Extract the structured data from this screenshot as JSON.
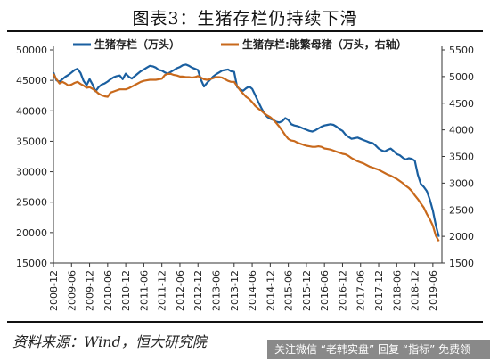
{
  "header": {
    "title": "图表3：生猪存栏仍持续下滑"
  },
  "footer": {
    "source": "资料来源：Wind，恒大研究院",
    "banner": "关注微信 “老韩实盘” 回复 “指标” 免费领"
  },
  "colors": {
    "primary": "#1a5fa0",
    "secondary": "#c8691c",
    "axis": "#333333",
    "text": "#222222"
  },
  "chart_data": {
    "type": "line",
    "title": "图表3：生猪存栏仍持续下滑",
    "xlabel": "",
    "ylabel": "",
    "grid": false,
    "legend_position": "top",
    "x_tick_labels": [
      "2008-12",
      "2009-06",
      "2009-12",
      "2010-06",
      "2010-12",
      "2011-06",
      "2011-12",
      "2012-06",
      "2012-12",
      "2013-06",
      "2013-12",
      "2014-06",
      "2014-12",
      "2015-06",
      "2015-12",
      "2016-06",
      "2016-12",
      "2017-06",
      "2017-12",
      "2018-06",
      "2018-12",
      "2019-06"
    ],
    "ylim_left": [
      15000,
      50000
    ],
    "ylim_right": [
      1500,
      5500
    ],
    "y_ticks_left": [
      15000,
      20000,
      25000,
      30000,
      35000,
      40000,
      45000,
      50000
    ],
    "y_ticks_right": [
      1500,
      2000,
      2500,
      3000,
      3500,
      4000,
      4500,
      5000,
      5500
    ],
    "series": [
      {
        "name": "生猪存栏（万头）",
        "axis": "left",
        "x": [
          "2008-12",
          "2009-01",
          "2009-02",
          "2009-03",
          "2009-04",
          "2009-05",
          "2009-06",
          "2009-07",
          "2009-08",
          "2009-09",
          "2009-10",
          "2009-11",
          "2009-12",
          "2010-01",
          "2010-02",
          "2010-03",
          "2010-04",
          "2010-05",
          "2010-06",
          "2010-07",
          "2010-08",
          "2010-09",
          "2010-10",
          "2010-11",
          "2010-12",
          "2011-01",
          "2011-02",
          "2011-03",
          "2011-04",
          "2011-05",
          "2011-06",
          "2011-07",
          "2011-08",
          "2011-09",
          "2011-10",
          "2011-11",
          "2011-12",
          "2012-01",
          "2012-02",
          "2012-03",
          "2012-04",
          "2012-05",
          "2012-06",
          "2012-07",
          "2012-08",
          "2012-09",
          "2012-10",
          "2012-11",
          "2012-12",
          "2013-01",
          "2013-02",
          "2013-03",
          "2013-04",
          "2013-05",
          "2013-06",
          "2013-07",
          "2013-08",
          "2013-09",
          "2013-10",
          "2013-11",
          "2013-12",
          "2014-01",
          "2014-02",
          "2014-03",
          "2014-04",
          "2014-05",
          "2014-06",
          "2014-07",
          "2014-08",
          "2014-09",
          "2014-10",
          "2014-11",
          "2014-12",
          "2015-01",
          "2015-02",
          "2015-03",
          "2015-04",
          "2015-05",
          "2015-06",
          "2015-07",
          "2015-08",
          "2015-09",
          "2015-10",
          "2015-11",
          "2015-12",
          "2016-01",
          "2016-02",
          "2016-03",
          "2016-04",
          "2016-05",
          "2016-06",
          "2016-07",
          "2016-08",
          "2016-09",
          "2016-10",
          "2016-11",
          "2016-12",
          "2017-01",
          "2017-02",
          "2017-03",
          "2017-04",
          "2017-05",
          "2017-06",
          "2017-07",
          "2017-08",
          "2017-09",
          "2017-10",
          "2017-11",
          "2017-12",
          "2018-01",
          "2018-02",
          "2018-03",
          "2018-04",
          "2018-05",
          "2018-06",
          "2018-07",
          "2018-08",
          "2018-09",
          "2018-10",
          "2018-11",
          "2018-12",
          "2019-01",
          "2019-02",
          "2019-03",
          "2019-04",
          "2019-05",
          "2019-06",
          "2019-07",
          "2019-08"
        ],
        "values": [
          46300,
          45000,
          44800,
          45200,
          45600,
          45900,
          46300,
          46700,
          46900,
          46200,
          44900,
          44200,
          45200,
          44300,
          43200,
          43900,
          44300,
          44500,
          44800,
          45200,
          45500,
          45700,
          45800,
          45200,
          46100,
          45600,
          45300,
          45700,
          46100,
          46500,
          46800,
          47100,
          47400,
          47300,
          47100,
          46700,
          46600,
          46300,
          46100,
          46400,
          46700,
          47000,
          47200,
          47500,
          47600,
          47400,
          47100,
          46900,
          46700,
          45100,
          44000,
          44600,
          45100,
          45600,
          46000,
          46300,
          46600,
          46700,
          46800,
          46500,
          46400,
          43900,
          43500,
          43300,
          43700,
          44000,
          43600,
          42600,
          41500,
          40500,
          39600,
          39000,
          38700,
          38500,
          38200,
          38100,
          38300,
          38800,
          38500,
          37800,
          37600,
          37500,
          37300,
          37100,
          36900,
          36700,
          36600,
          36800,
          37100,
          37400,
          37600,
          37700,
          37800,
          37700,
          37400,
          37000,
          36700,
          36100,
          35700,
          35400,
          35500,
          35600,
          35400,
          35200,
          35000,
          34800,
          34700,
          34300,
          33800,
          33500,
          33300,
          33600,
          33800,
          33400,
          32900,
          32700,
          32300,
          32000,
          32200,
          32100,
          31800,
          29500,
          28000,
          27500,
          26800,
          25400,
          23600,
          21200,
          19300
        ]
      },
      {
        "name": "生猪存栏:能繁母猪（万头，右轴）",
        "axis": "right",
        "x": [
          "2008-12",
          "2009-01",
          "2009-02",
          "2009-03",
          "2009-04",
          "2009-05",
          "2009-06",
          "2009-07",
          "2009-08",
          "2009-09",
          "2009-10",
          "2009-11",
          "2009-12",
          "2010-01",
          "2010-02",
          "2010-03",
          "2010-04",
          "2010-05",
          "2010-06",
          "2010-07",
          "2010-08",
          "2010-09",
          "2010-10",
          "2010-11",
          "2010-12",
          "2011-01",
          "2011-02",
          "2011-03",
          "2011-04",
          "2011-05",
          "2011-06",
          "2011-07",
          "2011-08",
          "2011-09",
          "2011-10",
          "2011-11",
          "2011-12",
          "2012-01",
          "2012-02",
          "2012-03",
          "2012-04",
          "2012-05",
          "2012-06",
          "2012-07",
          "2012-08",
          "2012-09",
          "2012-10",
          "2012-11",
          "2012-12",
          "2013-01",
          "2013-02",
          "2013-03",
          "2013-04",
          "2013-05",
          "2013-06",
          "2013-07",
          "2013-08",
          "2013-09",
          "2013-10",
          "2013-11",
          "2013-12",
          "2014-01",
          "2014-02",
          "2014-03",
          "2014-04",
          "2014-05",
          "2014-06",
          "2014-07",
          "2014-08",
          "2014-09",
          "2014-10",
          "2014-11",
          "2014-12",
          "2015-01",
          "2015-02",
          "2015-03",
          "2015-04",
          "2015-05",
          "2015-06",
          "2015-07",
          "2015-08",
          "2015-09",
          "2015-10",
          "2015-11",
          "2015-12",
          "2016-01",
          "2016-02",
          "2016-03",
          "2016-04",
          "2016-05",
          "2016-06",
          "2016-07",
          "2016-08",
          "2016-09",
          "2016-10",
          "2016-11",
          "2016-12",
          "2017-01",
          "2017-02",
          "2017-03",
          "2017-04",
          "2017-05",
          "2017-06",
          "2017-07",
          "2017-08",
          "2017-09",
          "2017-10",
          "2017-11",
          "2017-12",
          "2018-01",
          "2018-02",
          "2018-03",
          "2018-04",
          "2018-05",
          "2018-06",
          "2018-07",
          "2018-08",
          "2018-09",
          "2018-10",
          "2018-11",
          "2018-12",
          "2019-01",
          "2019-02",
          "2019-03",
          "2019-04",
          "2019-05",
          "2019-06",
          "2019-07",
          "2019-08"
        ],
        "values": [
          5050,
          4950,
          4870,
          4900,
          4870,
          4830,
          4850,
          4880,
          4900,
          4860,
          4830,
          4790,
          4800,
          4770,
          4730,
          4680,
          4650,
          4630,
          4620,
          4700,
          4720,
          4740,
          4760,
          4760,
          4760,
          4780,
          4810,
          4840,
          4870,
          4900,
          4920,
          4930,
          4940,
          4940,
          4940,
          4950,
          4960,
          5030,
          5050,
          5050,
          5030,
          5020,
          5000,
          5000,
          4990,
          4990,
          4980,
          4990,
          5010,
          4980,
          4950,
          4940,
          4950,
          4970,
          4990,
          4990,
          4980,
          4950,
          4920,
          4900,
          4900,
          4820,
          4740,
          4680,
          4620,
          4580,
          4520,
          4450,
          4400,
          4360,
          4310,
          4270,
          4240,
          4190,
          4130,
          4060,
          3980,
          3900,
          3830,
          3800,
          3790,
          3760,
          3740,
          3720,
          3700,
          3690,
          3680,
          3680,
          3690,
          3680,
          3650,
          3640,
          3630,
          3610,
          3590,
          3570,
          3550,
          3540,
          3510,
          3470,
          3440,
          3410,
          3390,
          3370,
          3340,
          3310,
          3290,
          3270,
          3250,
          3220,
          3190,
          3160,
          3140,
          3110,
          3080,
          3040,
          3000,
          2950,
          2910,
          2850,
          2770,
          2700,
          2620,
          2540,
          2420,
          2320,
          2200,
          2010,
          1910
        ]
      }
    ]
  }
}
